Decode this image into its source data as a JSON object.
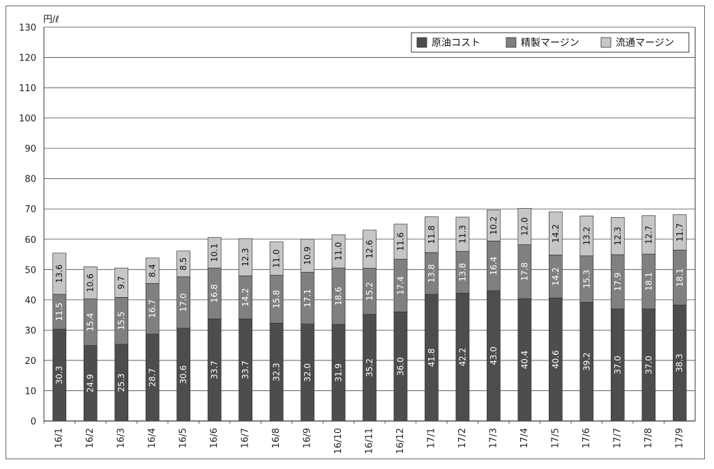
{
  "chart_data": {
    "type": "bar",
    "stacked": true,
    "unit_label": "円/ℓ",
    "ylim": [
      0,
      130
    ],
    "yticks": [
      0,
      10,
      20,
      30,
      40,
      50,
      60,
      70,
      80,
      90,
      100,
      110,
      120,
      130
    ],
    "grid": true,
    "legend_position": "top-right",
    "categories": [
      "16/1",
      "16/2",
      "16/3",
      "16/4",
      "16/5",
      "16/6",
      "16/7",
      "16/8",
      "16/9",
      "16/10",
      "16/11",
      "16/12",
      "17/1",
      "17/2",
      "17/3",
      "17/4",
      "17/5",
      "17/6",
      "17/7",
      "17/8",
      "17/9"
    ],
    "series": [
      {
        "name": "原油コスト",
        "color": "#4d4d4d",
        "values": [
          30.3,
          24.9,
          25.3,
          28.7,
          30.6,
          33.7,
          33.7,
          32.3,
          32.0,
          31.9,
          35.2,
          36.0,
          41.8,
          42.2,
          43.0,
          40.4,
          40.6,
          39.2,
          37.0,
          37.0,
          38.3
        ]
      },
      {
        "name": "精製マージン",
        "color": "#808080",
        "values": [
          11.5,
          15.4,
          15.5,
          16.7,
          17.0,
          16.8,
          14.2,
          15.8,
          17.1,
          18.6,
          15.2,
          17.4,
          13.8,
          13.8,
          16.4,
          17.8,
          14.2,
          15.3,
          17.9,
          18.1,
          18.1
        ]
      },
      {
        "name": "流通マージン",
        "color": "#c6c6c6",
        "values": [
          13.6,
          10.6,
          9.7,
          8.4,
          8.5,
          10.1,
          12.3,
          11.0,
          10.9,
          11.0,
          12.6,
          11.6,
          11.8,
          11.3,
          10.2,
          12.0,
          14.2,
          13.2,
          12.3,
          12.7,
          11.7
        ]
      }
    ]
  }
}
